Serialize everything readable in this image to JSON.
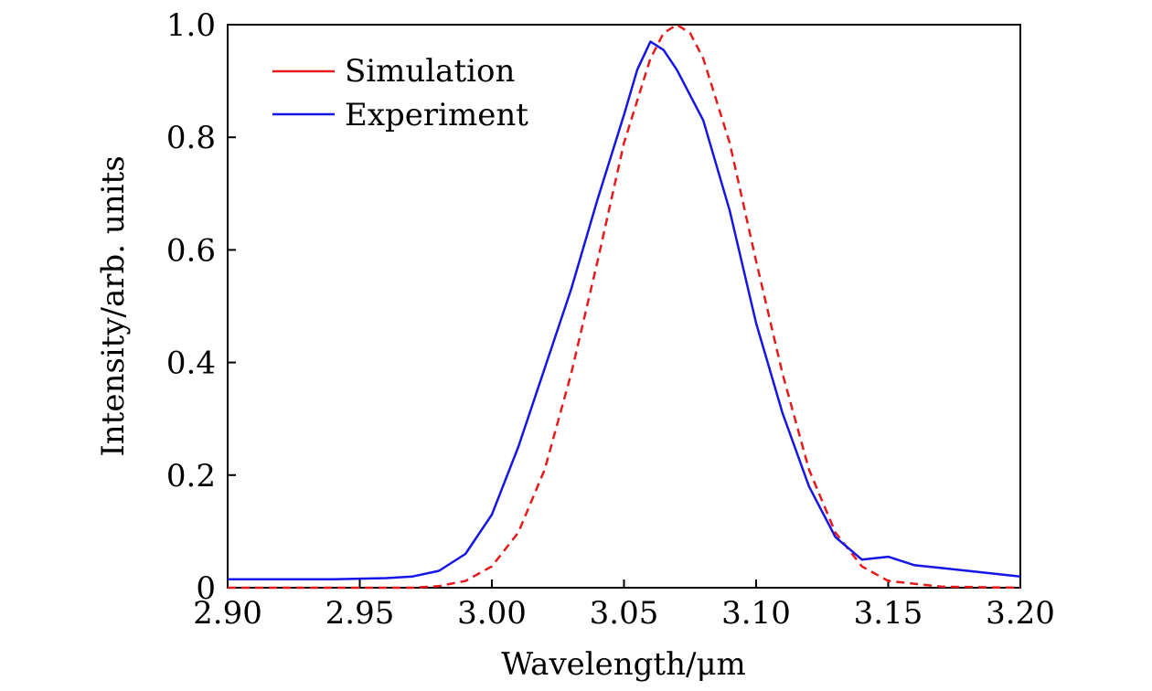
{
  "chart_data": {
    "type": "line",
    "title": "",
    "xlabel": "Wavelength/μm",
    "ylabel": "Intensity/arb. units",
    "xlim": [
      2.9,
      3.2
    ],
    "ylim": [
      0,
      1.0
    ],
    "grid": false,
    "legend_position": "top-left",
    "x_ticks": [
      2.9,
      2.95,
      3.0,
      3.05,
      3.1,
      3.15,
      3.2
    ],
    "x_tick_labels": [
      "2.90",
      "2.95",
      "3.00",
      "3.05",
      "3.10",
      "3.15",
      "3.20"
    ],
    "y_ticks": [
      0,
      0.2,
      0.4,
      0.6,
      0.8,
      1.0
    ],
    "y_tick_labels": [
      "0",
      "0.2",
      "0.4",
      "0.6",
      "0.8",
      "1.0"
    ],
    "series": [
      {
        "name": "Simulation",
        "color": "#e8191b",
        "style": "dashed",
        "x": [
          2.9,
          2.95,
          2.97,
          2.98,
          2.99,
          3.0,
          3.01,
          3.02,
          3.03,
          3.04,
          3.05,
          3.06,
          3.065,
          3.07,
          3.075,
          3.08,
          3.09,
          3.1,
          3.11,
          3.12,
          3.13,
          3.14,
          3.15,
          3.17,
          3.2
        ],
        "y": [
          0.0,
          0.0,
          0.0,
          0.003,
          0.012,
          0.038,
          0.098,
          0.21,
          0.38,
          0.58,
          0.79,
          0.94,
          0.985,
          1.0,
          0.985,
          0.94,
          0.79,
          0.58,
          0.38,
          0.21,
          0.098,
          0.038,
          0.012,
          0.002,
          0.0
        ]
      },
      {
        "name": "Experiment",
        "color": "#1515e6",
        "style": "solid",
        "x": [
          2.9,
          2.92,
          2.94,
          2.96,
          2.97,
          2.98,
          2.99,
          3.0,
          3.01,
          3.02,
          3.03,
          3.04,
          3.05,
          3.055,
          3.06,
          3.065,
          3.07,
          3.08,
          3.09,
          3.1,
          3.11,
          3.12,
          3.13,
          3.14,
          3.15,
          3.16,
          3.17,
          3.18,
          3.19,
          3.2
        ],
        "y": [
          0.015,
          0.015,
          0.015,
          0.017,
          0.02,
          0.03,
          0.06,
          0.13,
          0.25,
          0.39,
          0.53,
          0.69,
          0.84,
          0.92,
          0.97,
          0.955,
          0.92,
          0.83,
          0.67,
          0.47,
          0.31,
          0.18,
          0.09,
          0.05,
          0.055,
          0.04,
          0.035,
          0.03,
          0.025,
          0.02
        ]
      }
    ]
  }
}
